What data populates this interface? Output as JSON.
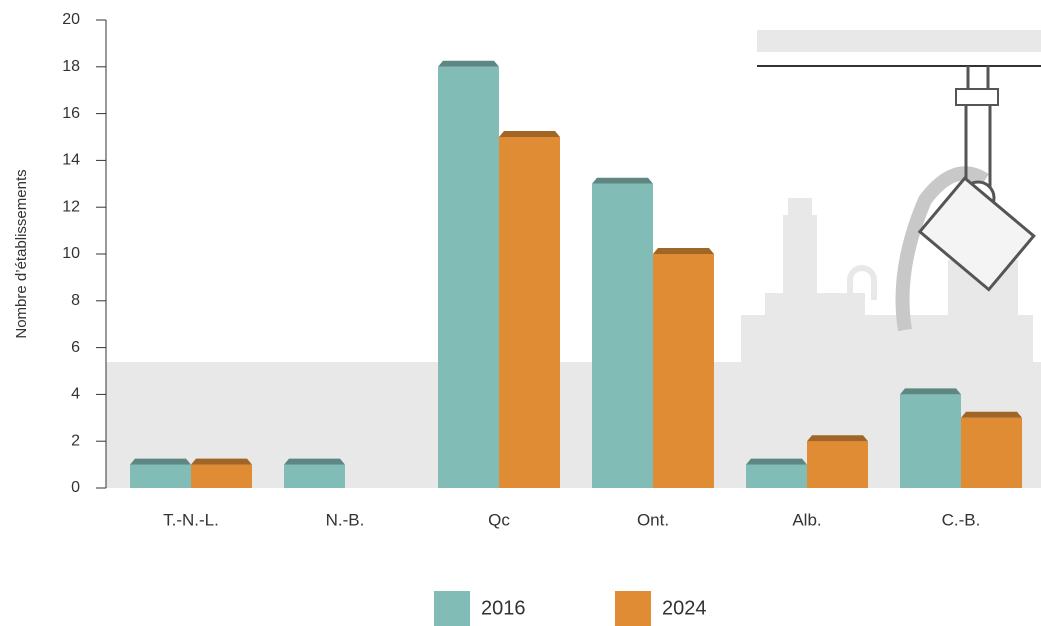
{
  "chart_data": {
    "type": "bar",
    "y_label": "Nombre d’établissements",
    "categories": [
      "T.-N.-L.",
      "N.-B.",
      "Qc",
      "Ont.",
      "Alb.",
      "C.-B."
    ],
    "series": [
      {
        "name": "2016",
        "color": "#82bcb7",
        "values": [
          1,
          1,
          18,
          13,
          1,
          4
        ]
      },
      {
        "name": "2024",
        "color": "#e08c35",
        "values": [
          1,
          null,
          15,
          10,
          2,
          3
        ]
      }
    ],
    "ylim": [
      0,
      20
    ],
    "yticks": [
      0,
      2,
      4,
      6,
      8,
      10,
      12,
      14,
      16,
      18,
      20
    ]
  }
}
